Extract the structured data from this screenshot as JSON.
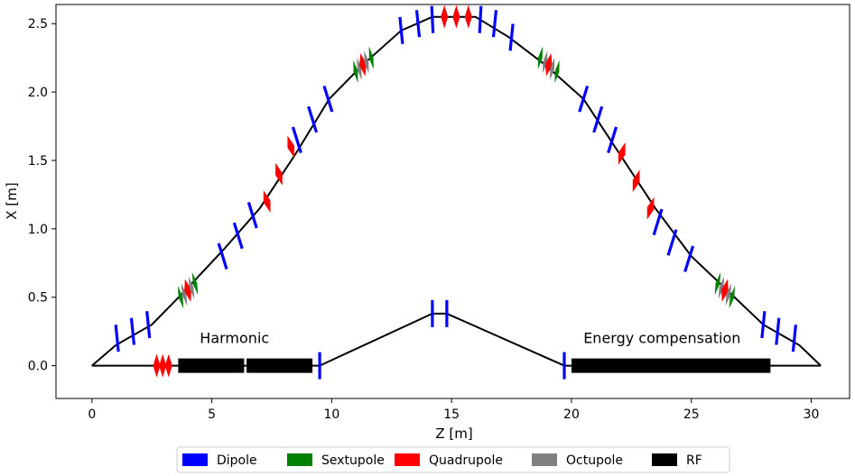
{
  "chart_data": {
    "type": "line",
    "title": "",
    "xlabel": "Z [m]",
    "ylabel": "X [m]",
    "xlim": [
      -1.5,
      31.6
    ],
    "ylim": [
      -0.24,
      2.64
    ],
    "xticks": [
      0,
      5,
      10,
      15,
      20,
      25,
      30
    ],
    "yticks": [
      0.0,
      0.5,
      1.0,
      1.5,
      2.0,
      2.5
    ],
    "xtick_labels": [
      "0",
      "5",
      "10",
      "15",
      "20",
      "25",
      "30"
    ],
    "ytick_labels": [
      "0.0",
      "0.5",
      "1.0",
      "1.5",
      "2.0",
      "2.5"
    ],
    "grid": false,
    "legend_position": "bottom-center",
    "colors": {
      "Dipole": "#0000ff",
      "Sextupole": "#008000",
      "Quadrupole": "#ff0000",
      "Octupole": "#808080",
      "RF": "#000000",
      "path": "#000000"
    },
    "legend": [
      {
        "label": "Dipole",
        "color_key": "Dipole"
      },
      {
        "label": "Sextupole",
        "color_key": "Sextupole"
      },
      {
        "label": "Quadrupole",
        "color_key": "Quadrupole"
      },
      {
        "label": "Octupole",
        "color_key": "Octupole"
      },
      {
        "label": "RF",
        "color_key": "RF"
      }
    ],
    "annotations": [
      {
        "text": "Harmonic",
        "x": 4.5,
        "y": 0.1
      },
      {
        "text": "Energy compensation",
        "x": 20.5,
        "y": 0.1
      }
    ],
    "paths": [
      {
        "name": "upper-arc",
        "points": [
          [
            0,
            0
          ],
          [
            1,
            0.15
          ],
          [
            2.5,
            0.3
          ],
          [
            3.9,
            0.55
          ],
          [
            5.5,
            0.85
          ],
          [
            7,
            1.15
          ],
          [
            8.5,
            1.55
          ],
          [
            9.9,
            1.95
          ],
          [
            11.3,
            2.2
          ],
          [
            12.9,
            2.45
          ],
          [
            14.2,
            2.55
          ],
          [
            16,
            2.55
          ],
          [
            17.4,
            2.4
          ],
          [
            18.9,
            2.2
          ],
          [
            20.5,
            1.95
          ],
          [
            22,
            1.55
          ],
          [
            23.5,
            1.15
          ],
          [
            25,
            0.8
          ],
          [
            26.5,
            0.55
          ],
          [
            28,
            0.3
          ],
          [
            29.5,
            0.15
          ],
          [
            30.4,
            0
          ]
        ]
      },
      {
        "name": "lower-path",
        "points": [
          [
            0,
            0
          ],
          [
            9.5,
            0
          ],
          [
            14.2,
            0.38
          ],
          [
            14.8,
            0.38
          ],
          [
            19.7,
            0
          ],
          [
            30.4,
            0
          ]
        ]
      }
    ],
    "elements": [
      {
        "type": "Dipole",
        "z": 1.05,
        "x": 0.2,
        "angle": 0.1
      },
      {
        "type": "Dipole",
        "z": 1.7,
        "x": 0.25,
        "angle": 0.1
      },
      {
        "type": "Dipole",
        "z": 2.35,
        "x": 0.3,
        "angle": 0.1
      },
      {
        "type": "Quadrupole",
        "z": 2.7,
        "x": 0.0,
        "angle": 0
      },
      {
        "type": "Quadrupole",
        "z": 2.95,
        "x": 0.0,
        "angle": 0
      },
      {
        "type": "Quadrupole",
        "z": 3.2,
        "x": 0.0,
        "angle": 0
      },
      {
        "type": "Sextupole",
        "z": 3.7,
        "x": 0.5,
        "angle": 0.25
      },
      {
        "type": "Octupole",
        "z": 3.85,
        "x": 0.52,
        "angle": 0.25
      },
      {
        "type": "Quadrupole",
        "z": 4.0,
        "x": 0.55,
        "angle": 0.25
      },
      {
        "type": "Octupole",
        "z": 4.15,
        "x": 0.57,
        "angle": 0.25
      },
      {
        "type": "Sextupole",
        "z": 4.3,
        "x": 0.6,
        "angle": 0.25
      },
      {
        "type": "Dipole",
        "z": 5.45,
        "x": 0.8,
        "angle": 0.3
      },
      {
        "type": "Dipole",
        "z": 6.1,
        "x": 0.95,
        "angle": 0.3
      },
      {
        "type": "Dipole",
        "z": 6.7,
        "x": 1.1,
        "angle": 0.3
      },
      {
        "type": "Quadrupole",
        "z": 7.3,
        "x": 1.2,
        "angle": 0.3
      },
      {
        "type": "Quadrupole",
        "z": 7.8,
        "x": 1.4,
        "angle": 0.3
      },
      {
        "type": "Quadrupole",
        "z": 8.3,
        "x": 1.6,
        "angle": 0.3
      },
      {
        "type": "Dipole",
        "z": 8.55,
        "x": 1.65,
        "angle": 0.3
      },
      {
        "type": "Dipole",
        "z": 9.2,
        "x": 1.8,
        "angle": 0.3
      },
      {
        "type": "Dipole",
        "z": 9.85,
        "x": 1.95,
        "angle": 0.3
      },
      {
        "type": "Sextupole",
        "z": 11.0,
        "x": 2.15,
        "angle": 0.2
      },
      {
        "type": "Octupole",
        "z": 11.15,
        "x": 2.17,
        "angle": 0.2
      },
      {
        "type": "Quadrupole",
        "z": 11.3,
        "x": 2.2,
        "angle": 0.2
      },
      {
        "type": "Octupole",
        "z": 11.45,
        "x": 2.22,
        "angle": 0.2
      },
      {
        "type": "Sextupole",
        "z": 11.65,
        "x": 2.25,
        "angle": 0.2
      },
      {
        "type": "Dipole",
        "z": 12.9,
        "x": 2.45,
        "angle": 0.1
      },
      {
        "type": "Dipole",
        "z": 13.6,
        "x": 2.5,
        "angle": 0.1
      },
      {
        "type": "Dipole",
        "z": 14.2,
        "x": 2.53,
        "angle": 0.05
      },
      {
        "type": "Quadrupole",
        "z": 14.7,
        "x": 2.55,
        "angle": 0
      },
      {
        "type": "Quadrupole",
        "z": 15.2,
        "x": 2.55,
        "angle": 0
      },
      {
        "type": "Quadrupole",
        "z": 15.7,
        "x": 2.55,
        "angle": 0
      },
      {
        "type": "Dipole",
        "z": 16.2,
        "x": 2.53,
        "angle": -0.05
      },
      {
        "type": "Dipole",
        "z": 16.8,
        "x": 2.5,
        "angle": -0.1
      },
      {
        "type": "Dipole",
        "z": 17.5,
        "x": 2.4,
        "angle": -0.1
      },
      {
        "type": "Sextupole",
        "z": 18.7,
        "x": 2.25,
        "angle": -0.2
      },
      {
        "type": "Octupole",
        "z": 18.9,
        "x": 2.22,
        "angle": -0.2
      },
      {
        "type": "Quadrupole",
        "z": 19.05,
        "x": 2.2,
        "angle": -0.2
      },
      {
        "type": "Octupole",
        "z": 19.2,
        "x": 2.17,
        "angle": -0.2
      },
      {
        "type": "Sextupole",
        "z": 19.4,
        "x": 2.15,
        "angle": -0.2
      },
      {
        "type": "Dipole",
        "z": 20.5,
        "x": 1.95,
        "angle": -0.3
      },
      {
        "type": "Dipole",
        "z": 21.1,
        "x": 1.8,
        "angle": -0.3
      },
      {
        "type": "Dipole",
        "z": 21.7,
        "x": 1.65,
        "angle": -0.3
      },
      {
        "type": "Quadrupole",
        "z": 22.1,
        "x": 1.55,
        "angle": -0.3
      },
      {
        "type": "Quadrupole",
        "z": 22.7,
        "x": 1.35,
        "angle": -0.3
      },
      {
        "type": "Quadrupole",
        "z": 23.3,
        "x": 1.15,
        "angle": -0.3
      },
      {
        "type": "Dipole",
        "z": 23.6,
        "x": 1.05,
        "angle": -0.3
      },
      {
        "type": "Dipole",
        "z": 24.2,
        "x": 0.9,
        "angle": -0.3
      },
      {
        "type": "Dipole",
        "z": 24.9,
        "x": 0.78,
        "angle": -0.3
      },
      {
        "type": "Sextupole",
        "z": 26.1,
        "x": 0.6,
        "angle": -0.25
      },
      {
        "type": "Octupole",
        "z": 26.25,
        "x": 0.57,
        "angle": -0.25
      },
      {
        "type": "Quadrupole",
        "z": 26.4,
        "x": 0.55,
        "angle": -0.25
      },
      {
        "type": "Octupole",
        "z": 26.55,
        "x": 0.52,
        "angle": -0.25
      },
      {
        "type": "Sextupole",
        "z": 26.7,
        "x": 0.5,
        "angle": -0.25
      },
      {
        "type": "Dipole",
        "z": 28.0,
        "x": 0.3,
        "angle": -0.1
      },
      {
        "type": "Dipole",
        "z": 28.6,
        "x": 0.25,
        "angle": -0.1
      },
      {
        "type": "Dipole",
        "z": 29.3,
        "x": 0.2,
        "angle": -0.1
      },
      {
        "type": "Dipole",
        "z": 9.5,
        "x": 0.0,
        "angle": 0
      },
      {
        "type": "Dipole",
        "z": 14.2,
        "x": 0.38,
        "angle": 0
      },
      {
        "type": "Dipole",
        "z": 14.8,
        "x": 0.38,
        "angle": 0
      },
      {
        "type": "Dipole",
        "z": 19.7,
        "x": 0.0,
        "angle": 0
      }
    ],
    "rf_cavities": [
      {
        "z0": 3.6,
        "z1": 6.35
      },
      {
        "z0": 6.45,
        "z1": 9.2
      },
      {
        "z0": 20.0,
        "z1": 28.3
      }
    ]
  }
}
